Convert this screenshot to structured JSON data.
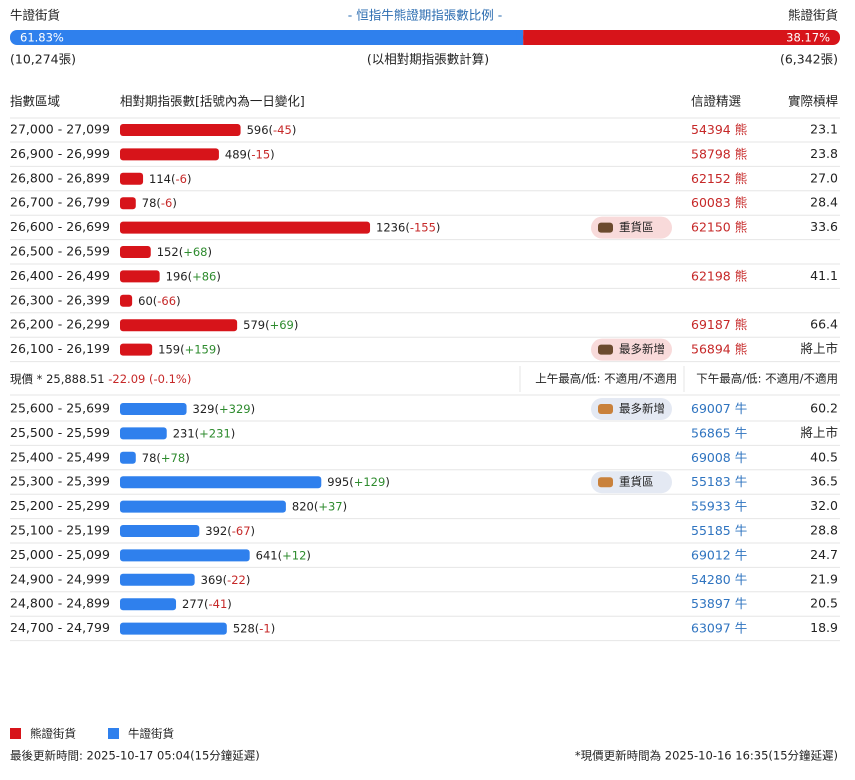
{
  "header": {
    "bull_label": "牛證街貨",
    "title": "- 恒指牛熊證期指張數比例 -",
    "bear_label": "熊證街貨",
    "bull_share": {
      "value": 61.83,
      "label": "61.83%"
    },
    "bear_share": {
      "value": 38.17,
      "label": "38.17%"
    },
    "bull_total": "(10,274張)",
    "note": "(以相對期指張數計算)",
    "bear_total": "(6,342張)"
  },
  "columns": [
    "指數區域",
    "相對期指張數[括號內為一日變化]",
    "信證精選",
    "實際槓桿"
  ],
  "bear": {
    "unit": "熊",
    "rows": [
      {
        "range": "27,000 - 27,099",
        "count": 596,
        "change": "-45",
        "code": "54394",
        "leverage": "23.1"
      },
      {
        "range": "26,900 - 26,999",
        "count": 489,
        "change": "-15",
        "code": "58798",
        "leverage": "23.8"
      },
      {
        "range": "26,800 - 26,899",
        "count": 114,
        "change": "-6",
        "code": "62152",
        "leverage": "27.0"
      },
      {
        "range": "26,700 - 26,799",
        "count": 78,
        "change": "-6",
        "code": "60083",
        "leverage": "28.4"
      },
      {
        "range": "26,600 - 26,699",
        "count": 1236,
        "change": "-155",
        "badge": "重貨區",
        "code": "62150",
        "leverage": "33.6"
      },
      {
        "range": "26,500 - 26,599",
        "count": 152,
        "change": "+68"
      },
      {
        "range": "26,400 - 26,499",
        "count": 196,
        "change": "+86",
        "code": "62198",
        "leverage": "41.1"
      },
      {
        "range": "26,300 - 26,399",
        "count": 60,
        "change": "-66"
      },
      {
        "range": "26,200 - 26,299",
        "count": 579,
        "change": "+69",
        "code": "69187",
        "leverage": "66.4"
      },
      {
        "range": "26,100 - 26,199",
        "count": 159,
        "change": "+159",
        "badge": "最多新增",
        "code": "56894",
        "leverage": "將上市"
      }
    ]
  },
  "price": {
    "label": "現價 *",
    "value": "25,888.51",
    "change": "-22.09 (-0.1%)",
    "am": "上午最高/低: 不適用/不適用",
    "pm": "下午最高/低: 不適用/不適用"
  },
  "bull": {
    "unit": "牛",
    "rows": [
      {
        "range": "25,600 - 25,699",
        "count": 329,
        "change": "+329",
        "badge": "最多新增",
        "code": "69007",
        "leverage": "60.2"
      },
      {
        "range": "25,500 - 25,599",
        "count": 231,
        "change": "+231",
        "code": "56865",
        "leverage": "將上市"
      },
      {
        "range": "25,400 - 25,499",
        "count": 78,
        "change": "+78",
        "code": "69008",
        "leverage": "40.5"
      },
      {
        "range": "25,300 - 25,399",
        "count": 995,
        "change": "+129",
        "badge": "重貨區",
        "code": "55183",
        "leverage": "36.5"
      },
      {
        "range": "25,200 - 25,299",
        "count": 820,
        "change": "+37",
        "code": "55933",
        "leverage": "32.0"
      },
      {
        "range": "25,100 - 25,199",
        "count": 392,
        "change": "-67",
        "code": "55185",
        "leverage": "28.8"
      },
      {
        "range": "25,000 - 25,099",
        "count": 641,
        "change": "+12",
        "code": "69012",
        "leverage": "24.7"
      },
      {
        "range": "24,900 - 24,999",
        "count": 369,
        "change": "-22",
        "code": "54280",
        "leverage": "21.9"
      },
      {
        "range": "24,800 - 24,899",
        "count": 277,
        "change": "-41",
        "code": "53897",
        "leverage": "20.5"
      },
      {
        "range": "24,700 - 24,799",
        "count": 528,
        "change": "-1",
        "code": "63097",
        "leverage": "18.9"
      }
    ]
  },
  "legend": [
    "熊證街貨",
    "牛證街貨"
  ],
  "footer": {
    "left": "最後更新時間: 2025-10-17 05:04(15分鐘延遲)",
    "right": "*現價更新時間為 2025-10-16 16:35(15分鐘延遲)"
  }
}
